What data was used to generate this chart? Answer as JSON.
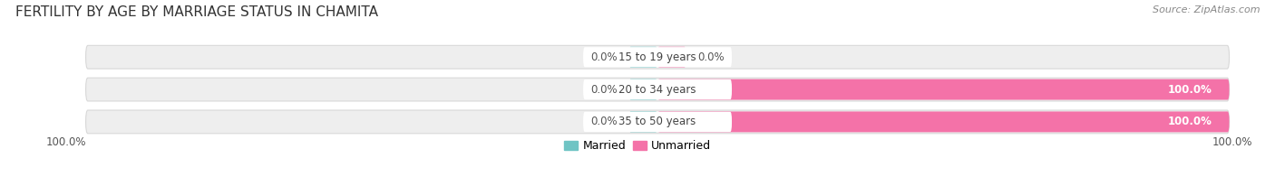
{
  "title": "FERTILITY BY AGE BY MARRIAGE STATUS IN CHAMITA",
  "source": "Source: ZipAtlas.com",
  "categories": [
    "15 to 19 years",
    "20 to 34 years",
    "35 to 50 years"
  ],
  "married_values": [
    0.0,
    0.0,
    0.0
  ],
  "unmarried_values": [
    0.0,
    100.0,
    100.0
  ],
  "married_color": "#6fc4c4",
  "unmarried_color": "#f472a8",
  "bar_bg_color": "#eeeeee",
  "bar_border_color": "#d8d8d8",
  "title_fontsize": 11,
  "label_fontsize": 8.5,
  "value_fontsize": 8.5,
  "legend_fontsize": 9,
  "source_fontsize": 8,
  "figsize": [
    14.06,
    1.96
  ],
  "dpi": 100,
  "bottom_left_label": "100.0%",
  "bottom_right_label": "100.0%",
  "center_label_bg": "#ffffff"
}
